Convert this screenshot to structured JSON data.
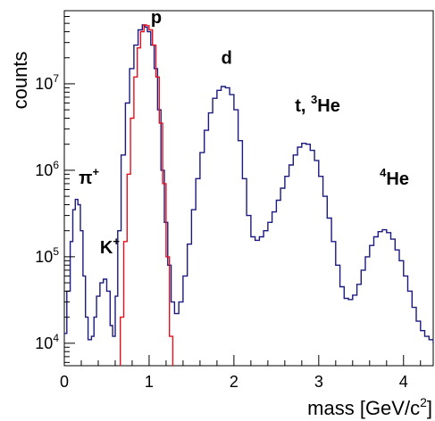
{
  "chart_data": {
    "type": "line",
    "xlabel": "mass  [GeV/c",
    "xlabel_sup": "2",
    "xlabel_close": "]",
    "ylabel": "counts",
    "xlim": [
      0,
      4.35
    ],
    "ylim": [
      5500,
      70000000
    ],
    "yscale": "log",
    "grid": false,
    "x_ticks": [
      {
        "value": 0,
        "label": "0"
      },
      {
        "value": 1,
        "label": "1"
      },
      {
        "value": 2,
        "label": "2"
      },
      {
        "value": 3,
        "label": "3"
      },
      {
        "value": 4,
        "label": "4"
      }
    ],
    "y_ticks": [
      {
        "value": 10000,
        "base": "10",
        "exp": "4"
      },
      {
        "value": 100000,
        "base": "10",
        "exp": "5"
      },
      {
        "value": 1000000,
        "base": "10",
        "exp": "6"
      },
      {
        "value": 10000000,
        "base": "10",
        "exp": "7"
      }
    ],
    "annotations": [
      {
        "x": 0.17,
        "y": 700000,
        "main": "π",
        "sup": "+",
        "pre": ""
      },
      {
        "x": 0.42,
        "y": 110000,
        "main": "K",
        "sup": "+",
        "pre": ""
      },
      {
        "x": 1.02,
        "y": 50000000,
        "main": "p",
        "sup": "",
        "pre": ""
      },
      {
        "x": 1.85,
        "y": 17000000,
        "main": "d",
        "sup": "",
        "pre": ""
      },
      {
        "x": 2.72,
        "y": 4800000,
        "main": "t, ",
        "sup": "",
        "pre": "3",
        "tail": "He"
      },
      {
        "x": 3.72,
        "y": 680000,
        "main": "",
        "sup": "",
        "pre": "4",
        "tail": "He"
      }
    ],
    "series": [
      {
        "color": "#1a1a80",
        "x": [
          0.0,
          0.03,
          0.07,
          0.1,
          0.13,
          0.16,
          0.19,
          0.22,
          0.25,
          0.28,
          0.32,
          0.35,
          0.38,
          0.42,
          0.46,
          0.5,
          0.54,
          0.57,
          0.6,
          0.63,
          0.67,
          0.72,
          0.77,
          0.82,
          0.87,
          0.92,
          0.95,
          0.98,
          1.02,
          1.06,
          1.1,
          1.14,
          1.18,
          1.22,
          1.26,
          1.3,
          1.35,
          1.4,
          1.45,
          1.5,
          1.55,
          1.6,
          1.65,
          1.7,
          1.75,
          1.8,
          1.85,
          1.9,
          1.95,
          2.0,
          2.05,
          2.1,
          2.15,
          2.2,
          2.25,
          2.3,
          2.35,
          2.4,
          2.45,
          2.5,
          2.55,
          2.6,
          2.65,
          2.7,
          2.75,
          2.8,
          2.85,
          2.9,
          2.95,
          3.0,
          3.05,
          3.1,
          3.15,
          3.2,
          3.25,
          3.3,
          3.35,
          3.4,
          3.45,
          3.5,
          3.55,
          3.6,
          3.65,
          3.7,
          3.75,
          3.8,
          3.85,
          3.9,
          3.95,
          4.0,
          4.05,
          4.1,
          4.15,
          4.2,
          4.25,
          4.3,
          4.35
        ],
        "y": [
          13000,
          40000,
          150000,
          350000,
          460000,
          400000,
          200000,
          60000,
          20000,
          11000,
          12000,
          20000,
          35000,
          50000,
          55000,
          40000,
          16000,
          12000,
          35000,
          200000,
          1500000,
          6000000,
          15000000,
          28000000,
          42000000,
          48000000,
          45000000,
          40000000,
          28000000,
          15000000,
          5000000,
          1000000,
          250000,
          80000,
          30000,
          22000,
          30000,
          60000,
          140000,
          350000,
          800000,
          1600000,
          2900000,
          4600000,
          6800000,
          8400000,
          9300000,
          9000000,
          7500000,
          5000000,
          2200000,
          800000,
          300000,
          170000,
          155000,
          170000,
          200000,
          250000,
          330000,
          450000,
          620000,
          850000,
          1150000,
          1500000,
          1850000,
          2050000,
          2000000,
          1700000,
          1300000,
          850000,
          500000,
          280000,
          150000,
          80000,
          45000,
          33000,
          32000,
          36000,
          48000,
          70000,
          100000,
          135000,
          170000,
          195000,
          205000,
          190000,
          160000,
          120000,
          90000,
          60000,
          40000,
          26000,
          18000,
          14000,
          12000,
          11000,
          10000
        ]
      },
      {
        "color": "#e8101c",
        "x": [
          0.62,
          0.66,
          0.7,
          0.74,
          0.78,
          0.82,
          0.86,
          0.9,
          0.94,
          0.97,
          1.0,
          1.04,
          1.08,
          1.12,
          1.16,
          1.2,
          1.24,
          1.28
        ],
        "y": [
          3000,
          20000,
          150000,
          900000,
          4000000,
          12000000,
          26000000,
          40000000,
          48000000,
          47000000,
          42000000,
          28000000,
          12000000,
          3500000,
          700000,
          100000,
          12000,
          1500
        ]
      }
    ]
  }
}
